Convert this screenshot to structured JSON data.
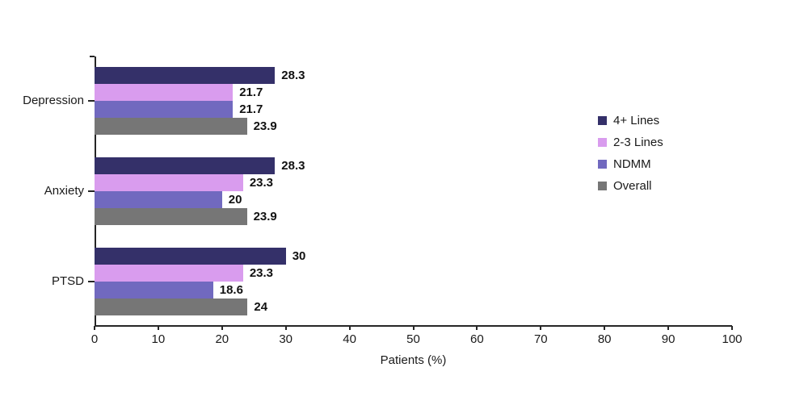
{
  "chart_data": {
    "type": "bar",
    "orientation": "horizontal",
    "title": "",
    "xlabel": "Patients (%)",
    "ylabel": "",
    "xlim": [
      0,
      100
    ],
    "xticks": [
      "0",
      "10",
      "20",
      "30",
      "40",
      "50",
      "60",
      "70",
      "80",
      "90",
      "100"
    ],
    "grid": false,
    "legend_position": "right",
    "categories": [
      "Depression",
      "Anxiety",
      "PTSD"
    ],
    "series": [
      {
        "name": "4+ Lines",
        "color": "#343069",
        "values": [
          28.3,
          28.3,
          30
        ],
        "labels": [
          "28.3",
          "28.3",
          "30"
        ]
      },
      {
        "name": "2-3 Lines",
        "color": "#D99CEE",
        "values": [
          21.7,
          23.3,
          23.3
        ],
        "labels": [
          "21.7",
          "23.3",
          "23.3"
        ]
      },
      {
        "name": "NDMM",
        "color": "#7169BF",
        "values": [
          21.7,
          20,
          18.6
        ],
        "labels": [
          "21.7",
          "20",
          "18.6"
        ]
      },
      {
        "name": "Overall",
        "color": "#767676",
        "values": [
          23.9,
          23.9,
          24
        ],
        "labels": [
          "23.9",
          "23.9",
          "24"
        ]
      }
    ]
  },
  "axis_color": "#262626",
  "value_label_color": "#111111",
  "background": "#ffffff"
}
